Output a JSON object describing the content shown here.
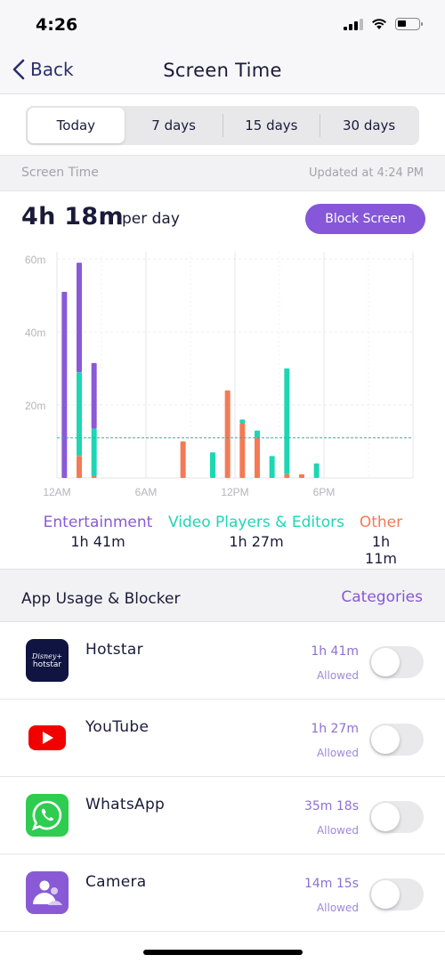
{
  "status_bar": {
    "time": "4:26"
  },
  "nav": {
    "back_label": "Back",
    "title": "Screen Time"
  },
  "segments": [
    {
      "label": "Today",
      "active": true
    },
    {
      "label": "7 days",
      "active": false
    },
    {
      "label": "15 days",
      "active": false
    },
    {
      "label": "30 days",
      "active": false
    }
  ],
  "screen_time_header": {
    "label": "Screen Time",
    "updated": "Updated at 4:24 PM"
  },
  "summary": {
    "total": "4h 18m",
    "unit": "per day",
    "block_button": "Block Screen"
  },
  "colors": {
    "accent": "#8657d8",
    "entertainment": "#8a5ad6",
    "video": "#1fd6b4",
    "other": "#f47a55"
  },
  "chart_data": {
    "type": "bar",
    "stacked": true,
    "title": "",
    "ylabel": "",
    "ylim": [
      0,
      60
    ],
    "y_ticks": [
      "60m",
      "40m",
      "20m"
    ],
    "x_ticks": [
      "12AM",
      "6AM",
      "12PM",
      "6PM"
    ],
    "grid": true,
    "hours": [
      0,
      1,
      2,
      8,
      10,
      11,
      12,
      13,
      14,
      15,
      16,
      17
    ],
    "series": [
      {
        "name": "Other",
        "color": "#f47a55",
        "values": [
          0,
          6,
          0.5,
          10,
          0,
          24,
          15,
          11,
          0,
          1,
          1,
          0
        ]
      },
      {
        "name": "Video Players & Editors",
        "color": "#1fd6b4",
        "values": [
          0,
          23,
          13,
          0,
          7,
          0,
          1,
          2,
          6,
          29,
          0,
          4
        ]
      },
      {
        "name": "Entertainment",
        "color": "#8a5ad6",
        "values": [
          51,
          30,
          18,
          0,
          0,
          0,
          0,
          0,
          0,
          0,
          0,
          0
        ]
      }
    ],
    "average_line": 11
  },
  "legend": [
    {
      "name": "Entertainment",
      "value": "1h 41m"
    },
    {
      "name": "Video Players & Editors",
      "value": "1h 27m"
    },
    {
      "name": "Other",
      "value": "1h 11m"
    }
  ],
  "usage": {
    "title": "App Usage & Blocker",
    "categories_link": "Categories"
  },
  "apps": [
    {
      "name": "Hotstar",
      "time": "1h 41m",
      "status": "Allowed",
      "icon": "hotstar-icon",
      "icon_text_top": "Disney+",
      "icon_text_bottom": "hotstar"
    },
    {
      "name": "YouTube",
      "time": "1h 27m",
      "status": "Allowed",
      "icon": "youtube-icon"
    },
    {
      "name": "WhatsApp",
      "time": "35m 18s",
      "status": "Allowed",
      "icon": "whatsapp-icon"
    },
    {
      "name": "Camera",
      "time": "14m 15s",
      "status": "Allowed",
      "icon": "camera-app-icon"
    }
  ]
}
